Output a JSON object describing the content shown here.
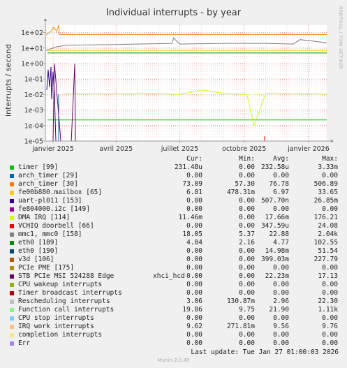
{
  "chart_data": {
    "type": "line",
    "title": "Individual interrupts - by year",
    "ylabel": "interrupts / second",
    "yscale": "log",
    "ylim": [
      1e-05,
      300
    ],
    "x_start": "2024-12-21",
    "x_end": "2026-01-27",
    "y_ticks": [
      "1e+02",
      "1e+01",
      "1e+00",
      "1e-01",
      "1e-02",
      "1e-03",
      "1e-04",
      "1e-05"
    ],
    "x_ticks": [
      {
        "label": "janvier 2025",
        "date": "2025-01-01"
      },
      {
        "label": "avril 2025",
        "date": "2025-04-01"
      },
      {
        "label": "juillet 2025",
        "date": "2025-07-01"
      },
      {
        "label": "octobre 2025",
        "date": "2025-10-01"
      },
      {
        "label": "janvier 2026",
        "date": "2026-01-01"
      }
    ],
    "grid": true,
    "series": [
      {
        "name": "timer [99]",
        "color": "#00cc00",
        "level": 0.00023,
        "x": [
          "2024-12-24",
          "2026-01-27"
        ]
      },
      {
        "name": "arch_timer [29]",
        "color": "#0066b3",
        "x": [
          "2025-01-09",
          "2025-01-09"
        ],
        "y": [
          1e-05,
          0.01
        ]
      },
      {
        "name": "arch_timer [30]",
        "color": "#ff8000",
        "x": [
          "2024-12-22",
          "2024-12-29",
          "2025-01-02",
          "2025-01-06",
          "2025-01-09",
          "2025-01-10",
          "2026-01-27"
        ],
        "y": [
          70,
          120,
          220,
          120,
          300,
          75,
          75
        ]
      },
      {
        "name": "fe00b880.mailbox [65]",
        "color": "#ffcc00",
        "level": 7,
        "x": [
          "2024-12-23",
          "2026-01-27"
        ]
      },
      {
        "name": "uart-pl011 [153]",
        "color": "#330099",
        "x": [
          "2024-12-23",
          "2024-12-25",
          "2024-12-27",
          "2024-12-29",
          "2024-12-30",
          "2025-01-01",
          "2025-01-03",
          "2025-01-05"
        ],
        "y": [
          0.02,
          0.4,
          0.03,
          0.6,
          0.005,
          0.3,
          0.01,
          1e-05
        ]
      },
      {
        "name": "fe804000.i2c [149]",
        "color": "#990099",
        "level": 0
      },
      {
        "name": "DMA IRQ [114]",
        "color": "#ccff00",
        "x": [
          "2025-01-17",
          "2025-03-01",
          "2025-05-01",
          "2025-06-01",
          "2025-07-01",
          "2025-08-01",
          "2025-09-01",
          "2025-10-05",
          "2025-10-15",
          "2025-11-01",
          "2025-12-01",
          "2026-01-27"
        ],
        "y": [
          0.012,
          0.011,
          0.012,
          0.012,
          0.01,
          0.02,
          0.012,
          0.01,
          0.0001,
          0.012,
          0.012,
          0.011
        ]
      },
      {
        "name": "VCHIQ doorbell [66]",
        "color": "#ff0000",
        "x": [
          "2025-10-30",
          "2025-10-30"
        ],
        "y": [
          1e-05,
          2e-05
        ]
      },
      {
        "name": "mmc1, mmc0 [158]",
        "color": "#808080",
        "x": [
          "2024-12-22",
          "2025-01-06",
          "2025-01-20",
          "2025-03-01",
          "2025-05-01",
          "2025-06-20",
          "2025-06-22",
          "2025-07-01",
          "2025-09-01",
          "2025-11-01",
          "2025-12-10",
          "2025-12-20",
          "2026-01-27"
        ],
        "y": [
          7,
          12,
          15,
          16,
          18,
          20,
          45,
          18,
          20,
          20,
          18,
          35,
          22
        ]
      },
      {
        "name": "eth0 [189]",
        "color": "#008f00",
        "level": 4.8,
        "x": [
          "2024-12-24",
          "2026-01-27"
        ]
      },
      {
        "name": "eth0 [190]",
        "color": "#00487d",
        "level": 0
      },
      {
        "name": "v3d [106]",
        "color": "#b35a00",
        "level": 0
      },
      {
        "name": "PCIe PME [175]",
        "color": "#b38f00",
        "level": 0
      },
      {
        "name": "STB PCIe MSI 524288 Edge",
        "color": "#6b006b",
        "device": "xhci_hcd",
        "x": [
          "2025-01-01",
          "2025-01-03",
          "2025-01-12",
          "2025-01-27",
          "2025-02-01",
          "2025-02-02"
        ],
        "y": [
          1e-05,
          1.0,
          1e-05,
          1e-05,
          1.0,
          1e-05
        ]
      },
      {
        "name": "CPU wakeup interrupts",
        "color": "#8fb300",
        "level": 0
      },
      {
        "name": "Timer broadcast interrupts",
        "color": "#b30000",
        "level": 0
      },
      {
        "name": "Rescheduling interrupts",
        "color": "#bebebe",
        "level": 3
      },
      {
        "name": "Function call interrupts",
        "color": "#80ff80",
        "level": 22
      },
      {
        "name": "CPU stop interrupts",
        "color": "#80c9ff",
        "level": 0
      },
      {
        "name": "IRQ work interrupts",
        "color": "#ffc080",
        "level": 9.6
      },
      {
        "name": "completion interrupts",
        "color": "#ffe680",
        "level": 0
      },
      {
        "name": "Err",
        "color": "#aa80ff",
        "level": 0
      }
    ]
  },
  "legend": {
    "headers": {
      "cur": "Cur:",
      "min": "Min:",
      "avg": "Avg:",
      "max": "Max:"
    },
    "rows": [
      {
        "name": "timer [99]",
        "extra": "",
        "color": "#00cc00",
        "cur": "231.48u",
        "min": "0.00",
        "avg": "232.58u",
        "max": "3.33m"
      },
      {
        "name": "arch_timer [29]",
        "extra": "",
        "color": "#0066b3",
        "cur": "0.00",
        "min": "0.00",
        "avg": "0.00",
        "max": "0.00"
      },
      {
        "name": "arch_timer [30]",
        "extra": "",
        "color": "#ff8000",
        "cur": "73.09",
        "min": "57.30",
        "avg": "76.78",
        "max": "506.89"
      },
      {
        "name": "fe00b880.mailbox [65]",
        "extra": "",
        "color": "#ffcc00",
        "cur": "6.81",
        "min": "478.31m",
        "avg": "6.97",
        "max": "33.65"
      },
      {
        "name": "uart-pl011 [153]",
        "extra": "",
        "color": "#330099",
        "cur": "0.00",
        "min": "0.00",
        "avg": "507.70n",
        "max": "26.85m"
      },
      {
        "name": "fe804000.i2c [149]",
        "extra": "",
        "color": "#990099",
        "cur": "0.00",
        "min": "0.00",
        "avg": "0.00",
        "max": "0.00"
      },
      {
        "name": "DMA IRQ [114]",
        "extra": "",
        "color": "#ccff00",
        "cur": "11.46m",
        "min": "0.00",
        "avg": "17.66m",
        "max": "176.21"
      },
      {
        "name": "VCHIQ doorbell [66]",
        "extra": "",
        "color": "#ff0000",
        "cur": "0.00",
        "min": "0.00",
        "avg": "347.59u",
        "max": "24.08"
      },
      {
        "name": "mmc1, mmc0 [158]",
        "extra": "",
        "color": "#808080",
        "cur": "18.05",
        "min": "5.37",
        "avg": "22.88",
        "max": "2.04k"
      },
      {
        "name": "eth0 [189]",
        "extra": "",
        "color": "#008f00",
        "cur": "4.84",
        "min": "2.16",
        "avg": "4.77",
        "max": "102.55"
      },
      {
        "name": "eth0 [190]",
        "extra": "",
        "color": "#00487d",
        "cur": "0.00",
        "min": "0.00",
        "avg": "14.98m",
        "max": "51.54"
      },
      {
        "name": "v3d [106]",
        "extra": "",
        "color": "#b35a00",
        "cur": "0.00",
        "min": "0.00",
        "avg": "399.03m",
        "max": "227.79"
      },
      {
        "name": "PCIe PME [175]",
        "extra": "",
        "color": "#b38f00",
        "cur": "0.00",
        "min": "0.00",
        "avg": "0.00",
        "max": "0.00"
      },
      {
        "name": "STB PCIe MSI 524288 Edge",
        "extra": "xhci_hcd",
        "color": "#6b006b",
        "cur": "0.00",
        "min": "0.00",
        "avg": "22.23m",
        "max": "17.13"
      },
      {
        "name": "CPU wakeup interrupts",
        "extra": "",
        "color": "#8fb300",
        "cur": "0.00",
        "min": "0.00",
        "avg": "0.00",
        "max": "0.00"
      },
      {
        "name": "Timer broadcast interrupts",
        "extra": "",
        "color": "#b30000",
        "cur": "0.00",
        "min": "0.00",
        "avg": "0.00",
        "max": "0.00"
      },
      {
        "name": "Rescheduling interrupts",
        "extra": "",
        "color": "#bebebe",
        "cur": "3.06",
        "min": "130.87m",
        "avg": "2.96",
        "max": "22.30"
      },
      {
        "name": "Function call interrupts",
        "extra": "",
        "color": "#80ff80",
        "cur": "19.86",
        "min": "9.75",
        "avg": "21.90",
        "max": "1.11k"
      },
      {
        "name": "CPU stop interrupts",
        "extra": "",
        "color": "#80c9ff",
        "cur": "0.00",
        "min": "0.00",
        "avg": "0.00",
        "max": "0.00"
      },
      {
        "name": "IRQ work interrupts",
        "extra": "",
        "color": "#ffc080",
        "cur": "9.62",
        "min": "271.81m",
        "avg": "9.56",
        "max": "9.76"
      },
      {
        "name": "completion interrupts",
        "extra": "",
        "color": "#ffe680",
        "cur": "0.00",
        "min": "0.00",
        "avg": "0.00",
        "max": "0.00"
      },
      {
        "name": "Err",
        "extra": "",
        "color": "#aa80ff",
        "cur": "0.00",
        "min": "0.00",
        "avg": "0.00",
        "max": "0.00"
      }
    ]
  },
  "last_update": "Last update: Tue Jan 27 01:00:03 2026",
  "side_text": "RRDTOOL / TOBI OETIKER",
  "footer": "Munin 2.0.49"
}
